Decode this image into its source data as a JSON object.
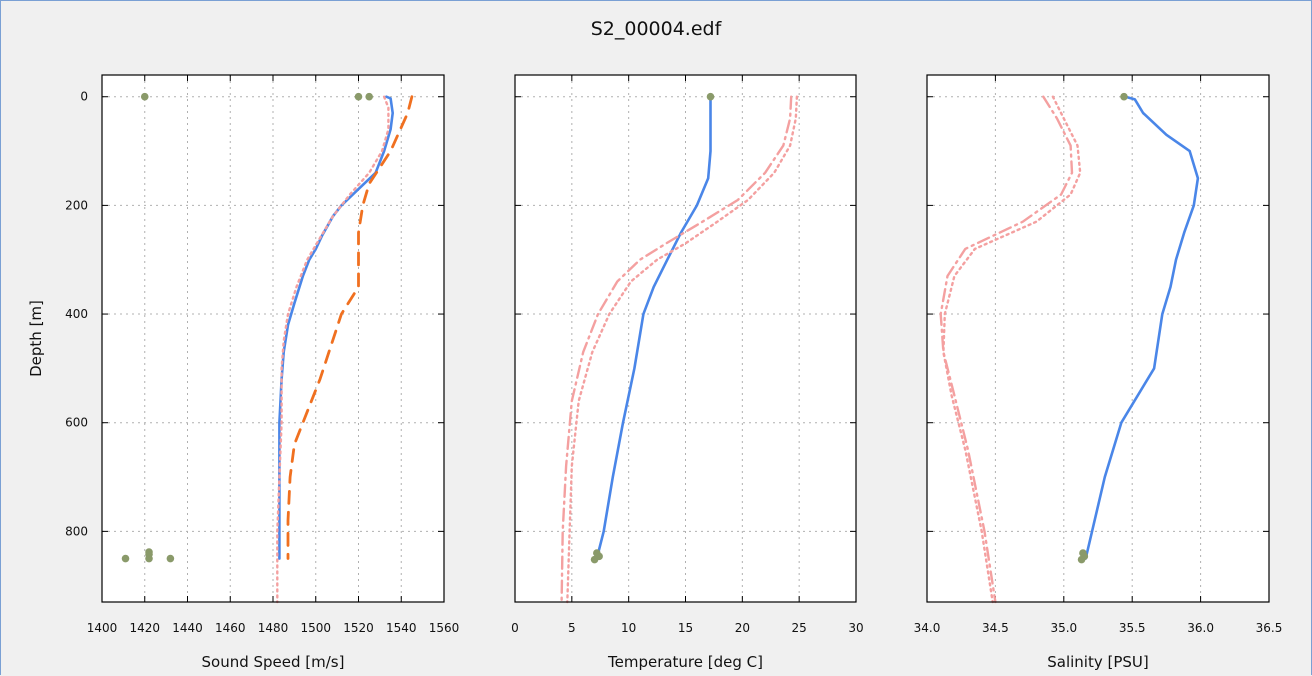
{
  "figure": {
    "title": "S2_00004.edf"
  },
  "chart_data": [
    {
      "type": "line",
      "xlabel": "Sound Speed [m/s]",
      "ylabel": "Depth [m]",
      "xlim": [
        1400,
        1560
      ],
      "ylim": [
        930,
        -40
      ],
      "y_inverted": true,
      "grid": true,
      "xticks": [
        1400,
        1420,
        1440,
        1460,
        1480,
        1500,
        1520,
        1540,
        1560
      ],
      "yticks": [
        0,
        200,
        400,
        600,
        800
      ],
      "colors": {
        "measured": "#4a86e8",
        "reference_dashed": "#f07020",
        "reference_dotted": "#f4a0a0",
        "flag_points": "#8a9a6a"
      },
      "series": [
        {
          "key": "measured",
          "style": "solid",
          "x": [
            1533,
            1535,
            1536,
            1535,
            1532,
            1528,
            1520,
            1512,
            1508,
            1503,
            1500,
            1497,
            1494,
            1490,
            1487,
            1485,
            1484,
            1483,
            1483,
            1483,
            1483
          ],
          "y": [
            0,
            3,
            30,
            60,
            100,
            140,
            170,
            200,
            220,
            255,
            280,
            300,
            330,
            380,
            420,
            470,
            520,
            600,
            700,
            800,
            850
          ]
        },
        {
          "key": "reference_dotted",
          "style": "dotted",
          "x": [
            1532,
            1534,
            1534,
            1531,
            1525,
            1516,
            1508,
            1502,
            1496,
            1491,
            1487,
            1485,
            1484,
            1484,
            1483,
            1482,
            1482
          ],
          "y": [
            0,
            20,
            60,
            100,
            140,
            180,
            220,
            260,
            300,
            350,
            400,
            450,
            500,
            600,
            700,
            800,
            930
          ]
        },
        {
          "key": "reference_dashed",
          "style": "dashed",
          "x": [
            1545,
            1543,
            1535,
            1525,
            1522,
            1520,
            1520,
            1512,
            1502,
            1497,
            1490,
            1488,
            1487,
            1487
          ],
          "y": [
            0,
            30,
            100,
            160,
            200,
            250,
            350,
            400,
            520,
            570,
            640,
            700,
            780,
            850
          ]
        },
        {
          "key": "flag_points",
          "style": "points",
          "x": [
            1420,
            1520,
            1525,
            1411,
            1422,
            1422,
            1422,
            1432
          ],
          "y": [
            0,
            0,
            0,
            850,
            838,
            842,
            850,
            850
          ]
        }
      ]
    },
    {
      "type": "line",
      "xlabel": "Temperature [deg C]",
      "xlim": [
        0,
        30
      ],
      "ylim": [
        930,
        -40
      ],
      "y_inverted": true,
      "grid": true,
      "xticks": [
        0,
        5,
        10,
        15,
        20,
        25,
        30
      ],
      "yticks": [
        0,
        200,
        400,
        600,
        800
      ],
      "colors": {
        "measured": "#4a86e8",
        "reference_dotted": "#f4a0a0",
        "flag_points": "#8a9a6a"
      },
      "series": [
        {
          "key": "measured",
          "style": "solid",
          "x": [
            17.2,
            17.2,
            17.2,
            17.0,
            16.0,
            14.6,
            13.4,
            12.2,
            11.3,
            10.5,
            9.5,
            8.6,
            7.8,
            7.2
          ],
          "y": [
            0,
            50,
            100,
            150,
            200,
            250,
            300,
            350,
            400,
            500,
            600,
            700,
            800,
            850
          ]
        },
        {
          "key": "reference_dotted",
          "style": "dotted",
          "x": [
            24.8,
            24.7,
            24.2,
            22.8,
            20.5,
            17.8,
            15.0,
            12.5,
            10.2,
            8.3,
            6.8,
            5.6,
            5.0,
            4.8,
            4.6
          ],
          "y": [
            0,
            40,
            90,
            140,
            190,
            230,
            270,
            300,
            340,
            400,
            470,
            560,
            680,
            800,
            930
          ]
        },
        {
          "key": "reference_dashdot",
          "style": "dashdot",
          "x": [
            24.3,
            24.2,
            23.6,
            22.0,
            19.6,
            16.5,
            13.3,
            11.0,
            9.0,
            7.3,
            6.0,
            5.0,
            4.5,
            4.2,
            4.1
          ],
          "y": [
            0,
            40,
            90,
            140,
            190,
            230,
            270,
            300,
            340,
            400,
            470,
            560,
            680,
            800,
            930
          ]
        },
        {
          "key": "flag_points",
          "style": "points",
          "x": [
            17.2,
            7.2,
            7.4,
            7.0
          ],
          "y": [
            0,
            840,
            846,
            852
          ]
        }
      ]
    },
    {
      "type": "line",
      "xlabel": "Salinity [PSU]",
      "xlim": [
        34.0,
        36.5
      ],
      "ylim": [
        930,
        -40
      ],
      "y_inverted": true,
      "grid": true,
      "xticks": [
        "34.0",
        "34.5",
        "35.0",
        "35.5",
        "36.0",
        "36.5"
      ],
      "yticks": [
        0,
        200,
        400,
        600,
        800
      ],
      "colors": {
        "measured": "#4a86e8",
        "reference_dotted": "#f4a0a0",
        "flag_points": "#8a9a6a"
      },
      "series": [
        {
          "key": "measured",
          "style": "solid",
          "x": [
            35.45,
            35.52,
            35.58,
            35.75,
            35.92,
            35.98,
            35.95,
            35.88,
            35.82,
            35.78,
            35.72,
            35.66,
            35.42,
            35.3,
            35.16
          ],
          "y": [
            0,
            5,
            30,
            70,
            100,
            150,
            200,
            250,
            300,
            350,
            400,
            500,
            600,
            700,
            850
          ]
        },
        {
          "key": "reference_dotted",
          "style": "dotted",
          "x": [
            34.92,
            35.0,
            35.1,
            35.12,
            35.05,
            34.8,
            34.35,
            34.2,
            34.13,
            34.12,
            34.18,
            34.28,
            34.4,
            34.48
          ],
          "y": [
            0,
            40,
            90,
            140,
            180,
            230,
            280,
            330,
            400,
            470,
            550,
            650,
            800,
            930
          ]
        },
        {
          "key": "reference_dashdot",
          "style": "dashdot",
          "x": [
            34.85,
            34.95,
            35.05,
            35.06,
            34.98,
            34.7,
            34.28,
            34.15,
            34.1,
            34.12,
            34.2,
            34.3,
            34.42,
            34.5
          ],
          "y": [
            0,
            40,
            90,
            140,
            180,
            230,
            280,
            330,
            400,
            470,
            550,
            650,
            800,
            930
          ]
        },
        {
          "key": "flag_points",
          "style": "points",
          "x": [
            35.44,
            35.14,
            35.15,
            35.13
          ],
          "y": [
            0,
            840,
            846,
            852
          ]
        }
      ]
    }
  ]
}
